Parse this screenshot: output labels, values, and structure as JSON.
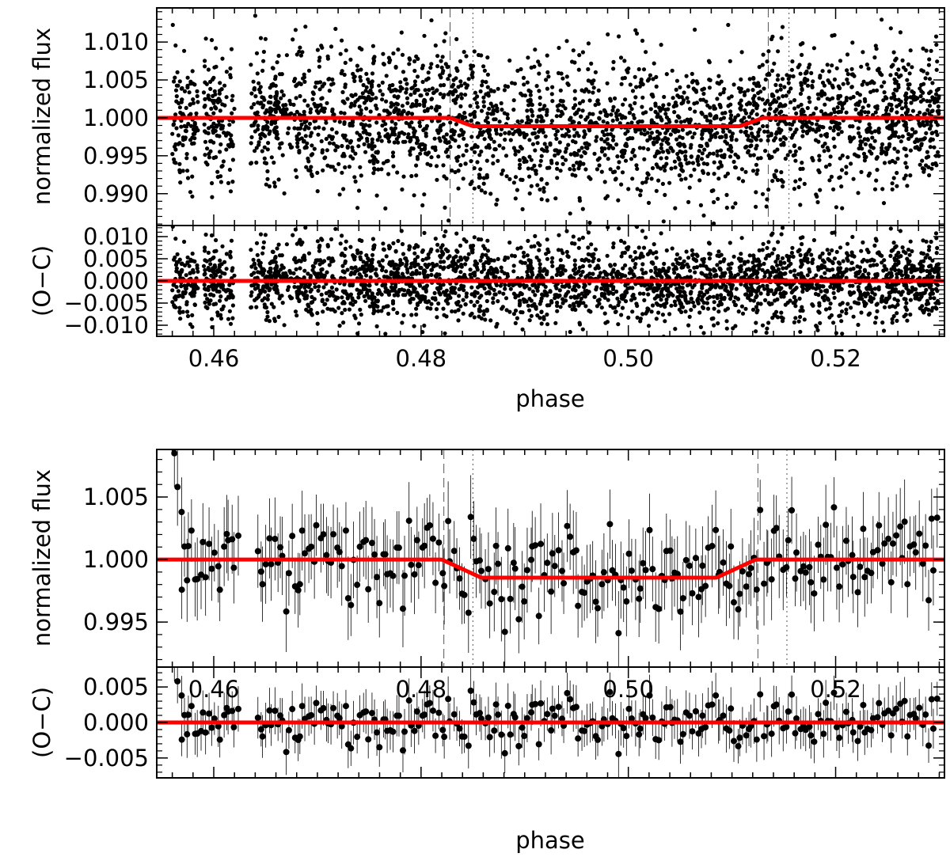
{
  "chart_data": [
    {
      "type": "scatter",
      "panel": "top-unbinned",
      "xlabel": "phase",
      "xlim": [
        0.4545,
        0.5305
      ],
      "xticks": [
        "0.46",
        "0.48",
        "0.50",
        "0.52"
      ],
      "xtick_values": [
        0.46,
        0.48,
        0.5,
        0.52
      ],
      "series": [
        {
          "role": "data",
          "description_points": "dense unbinned photometry, ~3000 points",
          "x_start": 0.456,
          "x_end": 0.53,
          "gaps": [
            [
              0.4585,
              0.459
            ],
            [
              0.462,
              0.4635
            ]
          ],
          "y_center": 0.9995,
          "y_scatter": 0.0045
        },
        {
          "role": "model",
          "color": "#ff0000",
          "x": [
            0.4545,
            0.4828,
            0.485,
            0.5108,
            0.513,
            0.5305
          ],
          "y": [
            1.0,
            1.0,
            0.9989,
            0.9989,
            1.0,
            1.0
          ]
        }
      ],
      "markers": {
        "dashed": [
          0.4828,
          0.5135
        ],
        "dotted": [
          0.485,
          0.5155
        ]
      },
      "subpanels": [
        {
          "ylabel": "normalized  flux",
          "ylim": [
            0.9858,
            1.0145
          ],
          "yticks": [
            "1.010",
            "1.005",
            "1.000",
            "0.995",
            "0.990"
          ],
          "ytick_values": [
            1.01,
            1.005,
            1.0,
            0.995,
            0.99
          ]
        },
        {
          "ylabel": "(O−C)",
          "ylim": [
            -0.0125,
            0.0125
          ],
          "yticks": [
            "0.010",
            "0.005",
            "0.000",
            "−0.005",
            "−0.010"
          ],
          "ytick_values": [
            0.01,
            0.005,
            0.0,
            -0.005,
            -0.01
          ]
        }
      ]
    },
    {
      "type": "scatter",
      "panel": "bottom-binned",
      "xlabel": "phase",
      "xlim": [
        0.4545,
        0.5305
      ],
      "xticks": [
        "0.46",
        "0.48",
        "0.50",
        "0.52"
      ],
      "xtick_values": [
        0.46,
        0.48,
        0.5,
        0.52
      ],
      "series": [
        {
          "role": "data-binned",
          "has_error_bars": true,
          "x_start": 0.456,
          "x_end": 0.53,
          "n_points": 270,
          "first_points": [
            {
              "x": 0.4562,
              "y": 1.0085
            },
            {
              "x": 0.4565,
              "y": 1.0058
            },
            {
              "x": 0.4569,
              "y": 1.0038
            }
          ]
        },
        {
          "role": "model",
          "color": "#ff0000",
          "x": [
            0.4545,
            0.482,
            0.4858,
            0.5085,
            0.5123,
            0.5305
          ],
          "y": [
            1.0,
            1.0,
            0.99855,
            0.99855,
            1.0,
            1.0
          ]
        }
      ],
      "markers": {
        "dashed": [
          0.4822,
          0.5125
        ],
        "dotted": [
          0.485,
          0.5153
        ]
      },
      "subpanels": [
        {
          "ylabel": "normalized  flux",
          "ylim": [
            0.9914,
            1.0088
          ],
          "yticks": [
            "1.005",
            "1.000",
            "0.995"
          ],
          "ytick_values": [
            1.005,
            1.0,
            0.995
          ]
        },
        {
          "ylabel": "(O−C)",
          "ylim": [
            -0.0078,
            0.0078
          ],
          "yticks": [
            "0.005",
            "0.000",
            "−0.005"
          ],
          "ytick_values": [
            0.005,
            0.0,
            -0.005
          ]
        }
      ]
    }
  ]
}
